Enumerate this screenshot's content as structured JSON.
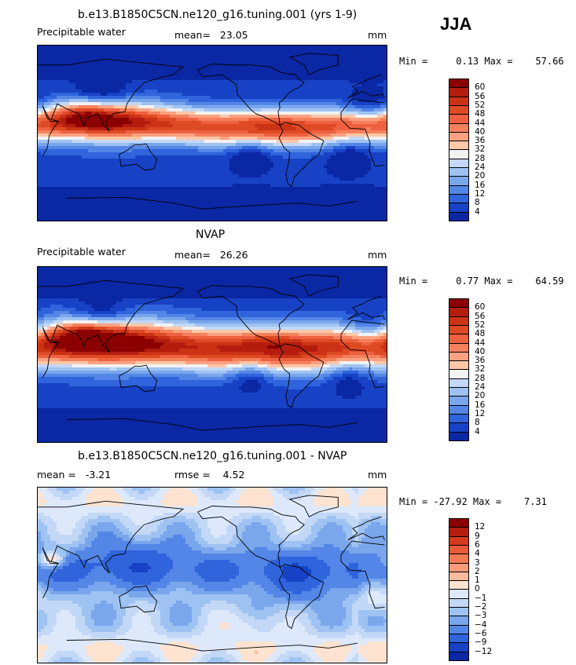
{
  "season": "JJA",
  "panels": [
    {
      "title": "b.e13.B1850C5CN.ne120_g16.tuning.001 (yrs 1-9)",
      "left_label": "Precipitable water",
      "mid_label": "mean=   23.05",
      "units": "mm",
      "minmax": "Min =     0.13 Max =    57.66",
      "colorbar": {
        "labels": [
          "60",
          "56",
          "52",
          "48",
          "44",
          "40",
          "36",
          "32",
          "28",
          "24",
          "20",
          "16",
          "12",
          "8",
          "4"
        ],
        "colors": [
          "#8b0000",
          "#b41d0e",
          "#cc3315",
          "#de4a24",
          "#ed6140",
          "#f5805c",
          "#fba181",
          "#fdc7a8",
          "#f2f2f2",
          "#c3d8f6",
          "#9ec3f2",
          "#7aa6ec",
          "#5386e6",
          "#2f64dc",
          "#1742c5",
          "#0a27a4"
        ]
      },
      "field": "pw_model"
    },
    {
      "title": "NVAP",
      "left_label": "Precipitable water",
      "mid_label": "mean=   26.26",
      "units": "mm",
      "minmax": "Min =     0.77 Max =    64.59",
      "colorbar": {
        "labels": [
          "60",
          "56",
          "52",
          "48",
          "44",
          "40",
          "36",
          "32",
          "28",
          "24",
          "20",
          "16",
          "12",
          "8",
          "4"
        ],
        "colors": [
          "#8b0000",
          "#b41d0e",
          "#cc3315",
          "#de4a24",
          "#ed6140",
          "#f5805c",
          "#fba181",
          "#fdc7a8",
          "#f2f2f2",
          "#c3d8f6",
          "#9ec3f2",
          "#7aa6ec",
          "#5386e6",
          "#2f64dc",
          "#1742c5",
          "#0a27a4"
        ]
      },
      "field": "pw_obs"
    },
    {
      "title": "b.e13.B1850C5CN.ne120_g16.tuning.001 - NVAP",
      "left_label": "mean =   -3.21",
      "mid_label": "rmse =    4.52",
      "units": "mm",
      "minmax": "Min = -27.92 Max =    7.31",
      "colorbar": {
        "labels": [
          "12",
          "9",
          "6",
          "4",
          "3",
          "2",
          "1",
          "0",
          "−1",
          "−2",
          "−3",
          "−4",
          "−6",
          "−9",
          "−12"
        ],
        "colors": [
          "#8b0000",
          "#b41d0e",
          "#d63a1c",
          "#ea5a38",
          "#f47a55",
          "#f99a78",
          "#fcbb9c",
          "#fde3d0",
          "#dde9fb",
          "#c3d8f6",
          "#9ec3f2",
          "#7aa6ec",
          "#5386e6",
          "#2f64dc",
          "#1742c5",
          "#0a27a4"
        ]
      },
      "field": "diff"
    }
  ]
}
